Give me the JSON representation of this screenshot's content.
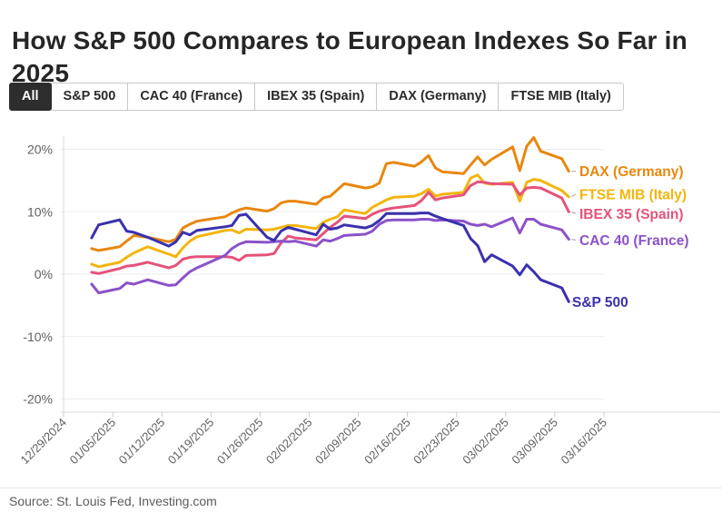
{
  "header": {
    "title": "How S&P 500 Compares to European Indexes So Far in 2025"
  },
  "tabs": [
    {
      "label": "All",
      "selected": true
    },
    {
      "label": "S&P 500",
      "selected": false
    },
    {
      "label": "CAC 40 (France)",
      "selected": false
    },
    {
      "label": "IBEX 35 (Spain)",
      "selected": false
    },
    {
      "label": "DAX (Germany)",
      "selected": false
    },
    {
      "label": "FTSE MIB (Italy)",
      "selected": false
    }
  ],
  "source": {
    "label": "Source: St. Louis Fed, Investing.com"
  },
  "chart_data": {
    "type": "line",
    "title": "How S&P 500 Compares to European Indexes So Far in 2025",
    "xlabel": "",
    "ylabel": "",
    "grid": true,
    "legend_position": "right-of-line-ends",
    "ylim": [
      -22,
      21.5
    ],
    "y_ticks": [
      {
        "label": "20%",
        "value": 20
      },
      {
        "label": "10%",
        "value": 10
      },
      {
        "label": "0%",
        "value": 0
      },
      {
        "label": "-10%",
        "value": -10
      },
      {
        "label": "-20%",
        "value": -20
      }
    ],
    "x_ticks": [
      {
        "label": "12/29/2024",
        "day": 0
      },
      {
        "label": "01/05/2025",
        "day": 7
      },
      {
        "label": "01/12/2025",
        "day": 14
      },
      {
        "label": "01/19/2025",
        "day": 21
      },
      {
        "label": "01/26/2025",
        "day": 28
      },
      {
        "label": "02/02/2025",
        "day": 35
      },
      {
        "label": "02/09/2025",
        "day": 42
      },
      {
        "label": "02/16/2025",
        "day": 49
      },
      {
        "label": "02/23/2025",
        "day": 56
      },
      {
        "label": "03/02/2025",
        "day": 63
      },
      {
        "label": "03/09/2025",
        "day": 70
      },
      {
        "label": "03/16/2025",
        "day": 77
      }
    ],
    "x": [
      "01/02/2025",
      "01/03/2025",
      "01/06/2025",
      "01/07/2025",
      "01/08/2025",
      "01/10/2025",
      "01/13/2025",
      "01/14/2025",
      "01/15/2025",
      "01/16/2025",
      "01/17/2025",
      "01/21/2025",
      "01/22/2025",
      "01/23/2025",
      "01/24/2025",
      "01/27/2025",
      "01/28/2025",
      "01/29/2025",
      "01/30/2025",
      "01/31/2025",
      "02/03/2025",
      "02/04/2025",
      "02/05/2025",
      "02/06/2025",
      "02/07/2025",
      "02/10/2025",
      "02/11/2025",
      "02/12/2025",
      "02/13/2025",
      "02/14/2025",
      "02/17/2025",
      "02/18/2025",
      "02/19/2025",
      "02/20/2025",
      "02/21/2025",
      "02/24/2025",
      "02/25/2025",
      "02/26/2025",
      "02/27/2025",
      "02/28/2025",
      "03/03/2025",
      "03/04/2025",
      "03/05/2025",
      "03/06/2025",
      "03/07/2025",
      "03/10/2025",
      "03/11/2025"
    ],
    "x_day_offsets": [
      4,
      5,
      8,
      9,
      10,
      12,
      15,
      16,
      17,
      18,
      19,
      23,
      24,
      25,
      26,
      29,
      30,
      31,
      32,
      33,
      36,
      37,
      38,
      39,
      40,
      43,
      44,
      45,
      46,
      47,
      50,
      51,
      52,
      53,
      54,
      57,
      58,
      59,
      60,
      61,
      64,
      65,
      66,
      67,
      68,
      71,
      72
    ],
    "unit": "%",
    "series": [
      {
        "name": "DAX (Germany)",
        "color": "#E8870F",
        "values": [
          4.1,
          3.8,
          4.4,
          5.3,
          6.2,
          5.9,
          5.2,
          5.6,
          7.4,
          8.0,
          8.5,
          9.2,
          9.8,
          10.3,
          10.6,
          10.1,
          10.5,
          11.4,
          11.7,
          11.7,
          11.2,
          12.2,
          12.5,
          13.5,
          14.5,
          13.8,
          14.0,
          14.6,
          17.7,
          17.9,
          17.3,
          18.0,
          19.0,
          17.0,
          16.4,
          16.1,
          17.5,
          18.8,
          17.5,
          18.4,
          20.4,
          16.6,
          20.5,
          21.9,
          19.7,
          18.5,
          16.5
        ]
      },
      {
        "name": "FTSE MIB (Italy)",
        "color": "#F2B50D",
        "values": [
          1.6,
          1.2,
          1.9,
          2.7,
          3.4,
          4.4,
          3.2,
          2.8,
          4.2,
          5.3,
          6.0,
          7.0,
          7.1,
          6.6,
          7.2,
          7.1,
          7.2,
          7.5,
          7.8,
          7.8,
          7.3,
          8.3,
          8.8,
          9.2,
          10.3,
          9.7,
          10.7,
          11.3,
          11.9,
          12.3,
          12.5,
          12.9,
          13.6,
          12.5,
          12.8,
          13.1,
          15.4,
          15.9,
          14.6,
          14.4,
          14.7,
          11.7,
          14.7,
          15.2,
          15.0,
          13.4,
          12.4
        ]
      },
      {
        "name": "IBEX 35 (Spain)",
        "color": "#E5537A",
        "values": [
          0.3,
          0.1,
          0.9,
          1.3,
          1.4,
          1.9,
          1.0,
          1.4,
          2.4,
          2.7,
          2.8,
          2.8,
          2.7,
          2.2,
          3.0,
          3.1,
          3.3,
          5.0,
          6.1,
          5.8,
          5.5,
          6.5,
          7.5,
          8.3,
          9.3,
          8.9,
          9.6,
          10.1,
          10.4,
          10.6,
          11.0,
          11.8,
          13.1,
          11.9,
          12.2,
          12.7,
          14.2,
          14.8,
          14.7,
          14.5,
          14.4,
          12.7,
          13.8,
          13.9,
          13.8,
          12.2,
          10.0
        ]
      },
      {
        "name": "CAC 40 (France)",
        "color": "#8B52C9",
        "values": [
          -1.6,
          -3.0,
          -2.3,
          -1.4,
          -1.6,
          -0.9,
          -1.8,
          -1.7,
          -0.6,
          0.4,
          1.0,
          3.0,
          4.1,
          4.8,
          5.2,
          5.1,
          5.2,
          5.3,
          5.2,
          5.3,
          4.5,
          5.5,
          5.3,
          5.7,
          6.2,
          6.4,
          6.9,
          8.0,
          8.6,
          8.7,
          8.7,
          8.8,
          8.8,
          8.6,
          8.7,
          8.5,
          8.0,
          7.8,
          8.0,
          7.6,
          9.0,
          6.6,
          8.8,
          8.8,
          8.0,
          7.1,
          5.6
        ]
      },
      {
        "name": "S&P 500",
        "color": "#3A31AE",
        "values": [
          5.8,
          7.9,
          8.7,
          6.9,
          6.7,
          5.9,
          4.5,
          5.2,
          6.7,
          6.3,
          7.0,
          7.6,
          7.8,
          9.4,
          9.6,
          5.9,
          5.4,
          6.9,
          7.5,
          7.2,
          6.3,
          8.0,
          7.2,
          7.4,
          7.9,
          7.4,
          7.8,
          8.6,
          9.7,
          9.7,
          9.7,
          9.8,
          9.8,
          9.3,
          8.9,
          7.8,
          5.7,
          4.6,
          2.0,
          3.1,
          1.3,
          -0.1,
          1.5,
          0.4,
          -0.9,
          -2.2,
          -4.4
        ]
      }
    ]
  }
}
